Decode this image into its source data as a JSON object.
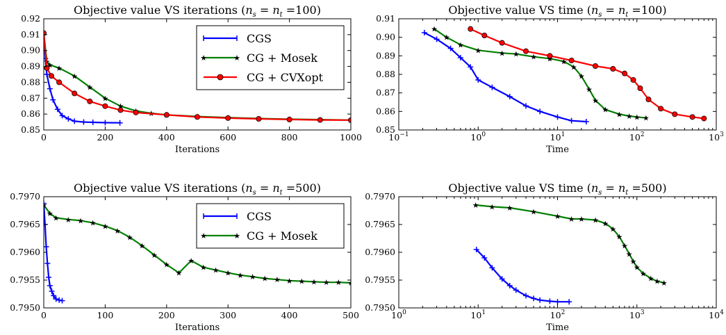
{
  "figure": {
    "subplots": [
      {
        "title": "Objective value VS iterations (n_s = n_t =100)",
        "xlabel": "Iterations"
      },
      {
        "title": "Objective value VS time (n_s = n_t =100)",
        "xlabel": "Time"
      },
      {
        "title": "Objective value VS iterations (n_s = n_t =500)",
        "xlabel": "Iterations"
      },
      {
        "title": "Objective value VS time (n_s = n_t =500)",
        "xlabel": "Time"
      }
    ]
  },
  "colors": {
    "CGS": "#0000ff",
    "CG + Mosek": "#008000",
    "CG + CVXopt": "#ff0000"
  },
  "chart_data": [
    {
      "type": "line",
      "title": "Objective value VS iterations (n_s = n_t =100)",
      "xlabel": "Iterations",
      "ylabel": "",
      "xscale": "linear",
      "xlim": [
        0,
        1000
      ],
      "ylim": [
        0.85,
        0.92
      ],
      "xticks": [
        0,
        200,
        400,
        600,
        800,
        1000
      ],
      "xticklabels": [
        "0",
        "200",
        "400",
        "600",
        "800",
        "1000"
      ],
      "yticks": [
        0.85,
        0.86,
        0.87,
        0.88,
        0.89,
        0.9,
        0.91,
        0.92
      ],
      "yticklabels": [
        "0.85",
        "0.86",
        "0.87",
        "0.88",
        "0.89",
        "0.90",
        "0.91",
        "0.92"
      ],
      "legend": {
        "position": "top-right"
      },
      "series": [
        {
          "name": "CGS",
          "marker": "plus",
          "x": [
            0,
            5,
            10,
            20,
            30,
            45,
            60,
            80,
            100,
            130,
            160,
            200,
            248
          ],
          "y": [
            0.911,
            0.895,
            0.885,
            0.876,
            0.869,
            0.863,
            0.859,
            0.857,
            0.8555,
            0.855,
            0.8548,
            0.8546,
            0.8545
          ]
        },
        {
          "name": "CG + Mosek",
          "marker": "star",
          "x": [
            0,
            10,
            20,
            50,
            100,
            150,
            200,
            250,
            300,
            350,
            400,
            500,
            600,
            700,
            800,
            900,
            1000
          ],
          "y": [
            0.911,
            0.893,
            0.891,
            0.889,
            0.884,
            0.877,
            0.87,
            0.865,
            0.862,
            0.8605,
            0.8595,
            0.8585,
            0.8578,
            0.8572,
            0.8568,
            0.8565,
            0.8562
          ]
        },
        {
          "name": "CG + CVXopt",
          "marker": "circle",
          "x": [
            0,
            10,
            25,
            50,
            100,
            150,
            200,
            250,
            300,
            400,
            500,
            600,
            700,
            800,
            900,
            1000
          ],
          "y": [
            0.911,
            0.889,
            0.884,
            0.88,
            0.873,
            0.868,
            0.865,
            0.8625,
            0.861,
            0.8595,
            0.8582,
            0.8575,
            0.857,
            0.8566,
            0.8563,
            0.8562
          ]
        }
      ]
    },
    {
      "type": "line",
      "title": "Objective value VS time (n_s = n_t =100)",
      "xlabel": "Time",
      "ylabel": "",
      "xscale": "log",
      "xlim": [
        0.1,
        1000
      ],
      "ylim": [
        0.85,
        0.91
      ],
      "xticks": [
        0.1,
        1,
        10,
        100,
        1000
      ],
      "xticklabels": [
        "10^-1",
        "10^0",
        "10^1",
        "10^2",
        "10^3"
      ],
      "yticks": [
        0.85,
        0.86,
        0.87,
        0.88,
        0.89,
        0.9,
        0.91
      ],
      "yticklabels": [
        "0.85",
        "0.86",
        "0.87",
        "0.88",
        "0.89",
        "0.90",
        "0.91"
      ],
      "series": [
        {
          "name": "CGS",
          "marker": "plus",
          "x": [
            0.21,
            0.3,
            0.45,
            0.6,
            0.8,
            1.0,
            1.5,
            2.5,
            4,
            6,
            10,
            15,
            23
          ],
          "y": [
            0.9025,
            0.899,
            0.894,
            0.889,
            0.884,
            0.877,
            0.873,
            0.868,
            0.863,
            0.86,
            0.857,
            0.855,
            0.8545
          ]
        },
        {
          "name": "CG + Mosek",
          "marker": "star",
          "x": [
            0.28,
            0.4,
            0.6,
            1,
            2,
            3,
            5,
            8,
            12,
            16,
            20,
            25,
            30,
            40,
            60,
            80,
            100,
            130
          ],
          "y": [
            0.9045,
            0.9,
            0.896,
            0.893,
            0.8915,
            0.891,
            0.8895,
            0.8885,
            0.887,
            0.884,
            0.879,
            0.872,
            0.866,
            0.861,
            0.8585,
            0.8575,
            0.857,
            0.8565
          ]
        },
        {
          "name": "CG + CVXopt",
          "marker": "circle",
          "x": [
            0.8,
            1.2,
            2,
            4,
            8,
            15,
            30,
            50,
            70,
            90,
            110,
            140,
            200,
            300,
            500,
            700
          ],
          "y": [
            0.9045,
            0.901,
            0.897,
            0.8925,
            0.89,
            0.8875,
            0.8845,
            0.883,
            0.8805,
            0.877,
            0.8725,
            0.8665,
            0.8615,
            0.8585,
            0.857,
            0.8562
          ]
        }
      ]
    },
    {
      "type": "line",
      "title": "Objective value VS iterations (n_s = n_t =500)",
      "xlabel": "Iterations",
      "ylabel": "",
      "xscale": "linear",
      "xlim": [
        0,
        500
      ],
      "ylim": [
        0.795,
        0.797
      ],
      "xticks": [
        0,
        100,
        200,
        300,
        400,
        500
      ],
      "xticklabels": [
        "0",
        "100",
        "200",
        "300",
        "400",
        "500"
      ],
      "yticks": [
        0.795,
        0.7955,
        0.796,
        0.7965,
        0.797
      ],
      "yticklabels": [
        "0.7950",
        "0.7955",
        "0.7960",
        "0.7965",
        "0.7970"
      ],
      "legend": {
        "position": "top-right"
      },
      "series": [
        {
          "name": "CGS",
          "marker": "plus",
          "x": [
            0,
            2,
            4,
            6,
            8,
            10,
            13,
            16,
            20,
            25,
            30
          ],
          "y": [
            0.79688,
            0.7965,
            0.7961,
            0.7958,
            0.79555,
            0.7954,
            0.7953,
            0.79522,
            0.79516,
            0.79514,
            0.79513
          ]
        },
        {
          "name": "CG + Mosek",
          "marker": "star",
          "x": [
            0,
            10,
            20,
            40,
            60,
            80,
            100,
            120,
            140,
            160,
            180,
            200,
            220,
            240,
            260,
            280,
            300,
            320,
            340,
            360,
            380,
            400,
            420,
            440,
            460,
            480,
            500
          ],
          "y": [
            0.79685,
            0.7967,
            0.79662,
            0.79659,
            0.79657,
            0.79653,
            0.79647,
            0.79639,
            0.79627,
            0.79612,
            0.79595,
            0.79578,
            0.79563,
            0.79585,
            0.79573,
            0.79568,
            0.79563,
            0.79559,
            0.79556,
            0.79553,
            0.79551,
            0.79549,
            0.79548,
            0.79547,
            0.79546,
            0.79546,
            0.79545
          ]
        }
      ]
    },
    {
      "type": "line",
      "title": "Objective value VS time (n_s = n_t =500)",
      "xlabel": "Time",
      "ylabel": "",
      "xscale": "log",
      "xlim": [
        1,
        10000
      ],
      "ylim": [
        0.795,
        0.797
      ],
      "xticks": [
        1,
        10,
        100,
        1000,
        10000
      ],
      "xticklabels": [
        "10^0",
        "10^1",
        "10^2",
        "10^3",
        "10^4"
      ],
      "yticks": [
        0.795,
        0.7955,
        0.796,
        0.7965,
        0.797
      ],
      "yticklabels": [
        "0.7950",
        "0.7955",
        "0.7960",
        "0.7965",
        "0.7970"
      ],
      "series": [
        {
          "name": "CGS",
          "marker": "plus",
          "x": [
            9.5,
            12,
            15,
            20,
            25,
            30,
            40,
            50,
            60,
            80,
            100,
            140
          ],
          "y": [
            0.79605,
            0.7959,
            0.79572,
            0.79552,
            0.7954,
            0.79532,
            0.79522,
            0.79517,
            0.79514,
            0.79512,
            0.79511,
            0.79511
          ]
        },
        {
          "name": "CG + Mosek",
          "marker": "star",
          "x": [
            9.3,
            15,
            25,
            50,
            100,
            150,
            200,
            300,
            400,
            500,
            600,
            700,
            800,
            900,
            1000,
            1200,
            1500,
            1800,
            2200
          ],
          "y": [
            0.79685,
            0.79682,
            0.7968,
            0.79673,
            0.79665,
            0.7966,
            0.7966,
            0.79658,
            0.79652,
            0.79642,
            0.79628,
            0.79612,
            0.79597,
            0.79584,
            0.79573,
            0.79562,
            0.79553,
            0.79548,
            0.79545
          ]
        }
      ]
    }
  ]
}
